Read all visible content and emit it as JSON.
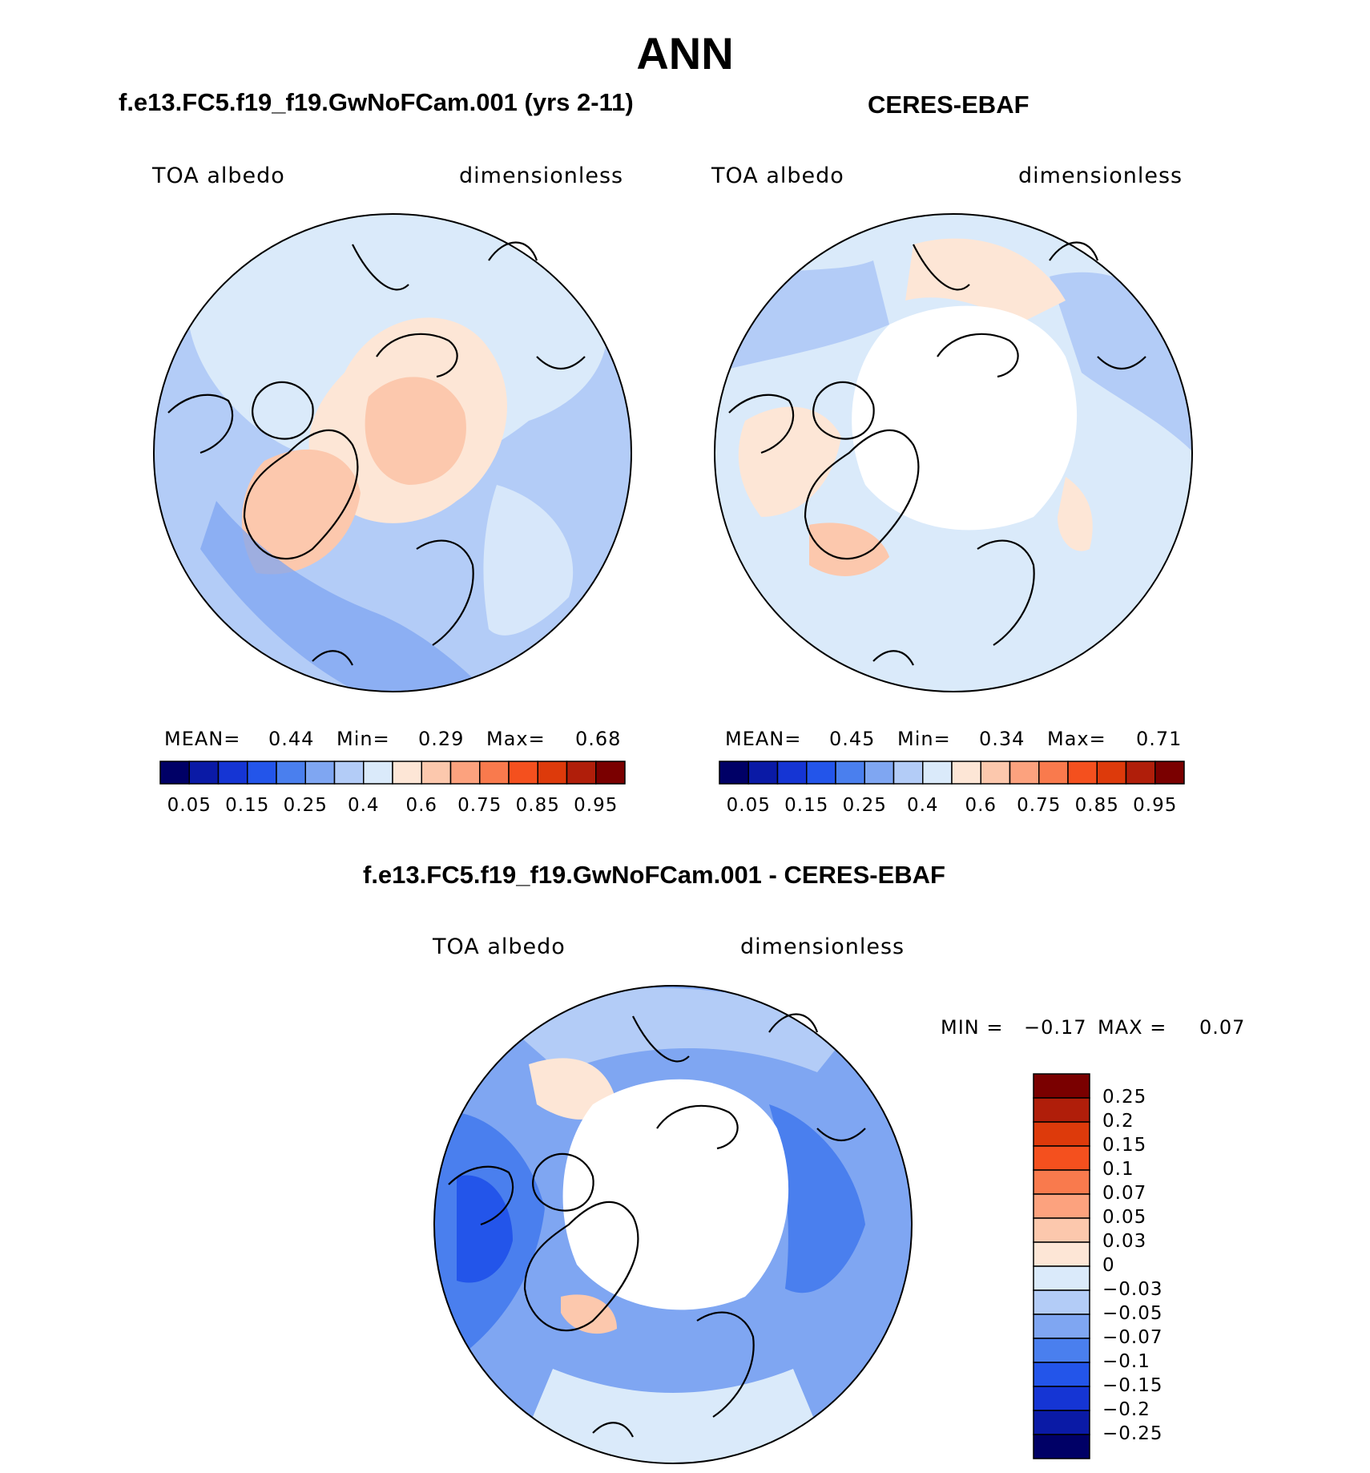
{
  "main_title": "ANN",
  "panels": [
    {
      "title": "f.e13.FC5.f19_f19.GwNoFCam.001 (yrs 2-11)",
      "left_label": "TOA albedo",
      "right_label": "dimensionless",
      "stats": {
        "mean_label": "MEAN=",
        "mean": "0.44",
        "min_label": "Min=",
        "min": "0.29",
        "max_label": "Max=",
        "max": "0.68"
      }
    },
    {
      "title": "CERES-EBAF",
      "left_label": "TOA albedo",
      "right_label": "dimensionless",
      "stats": {
        "mean_label": "MEAN=",
        "mean": "0.45",
        "min_label": "Min=",
        "min": "0.34",
        "max_label": "Max=",
        "max": "0.71"
      }
    },
    {
      "title": "f.e13.FC5.f19_f19.GwNoFCam.001 - CERES-EBAF",
      "left_label": "TOA albedo",
      "right_label": "dimensionless",
      "stats": {
        "min_label": "MIN =",
        "min": "−0.17",
        "max_label": "MAX =",
        "max": "0.07"
      }
    }
  ],
  "colorbar_abs": {
    "colors": [
      "#000066",
      "#0a1aa6",
      "#1535d4",
      "#2355ea",
      "#4a7fee",
      "#7fa6f2",
      "#b3ccf7",
      "#daeafa",
      "#fde6d6",
      "#fcc8ad",
      "#fca27e",
      "#f97a4d",
      "#f4501e",
      "#dd3a0b",
      "#b01e0a",
      "#7a0000"
    ],
    "tick_labels": [
      "0.05",
      "0.15",
      "0.25",
      "0.4",
      "0.6",
      "0.75",
      "0.85",
      "0.95"
    ]
  },
  "colorbar_diff": {
    "colors": [
      "#7a0000",
      "#b01e0a",
      "#dd3a0b",
      "#f4501e",
      "#f97a4d",
      "#fca27e",
      "#fcc8ad",
      "#fde6d6",
      "#daeafa",
      "#b3ccf7",
      "#7fa6f2",
      "#4a7fee",
      "#2355ea",
      "#1535d4",
      "#0a1aa6",
      "#000066"
    ],
    "tick_labels": [
      "0.25",
      "0.2",
      "0.15",
      "0.1",
      "0.07",
      "0.05",
      "0.03",
      "0",
      "−0.03",
      "−0.05",
      "−0.07",
      "−0.1",
      "−0.15",
      "−0.2",
      "−0.25"
    ]
  }
}
